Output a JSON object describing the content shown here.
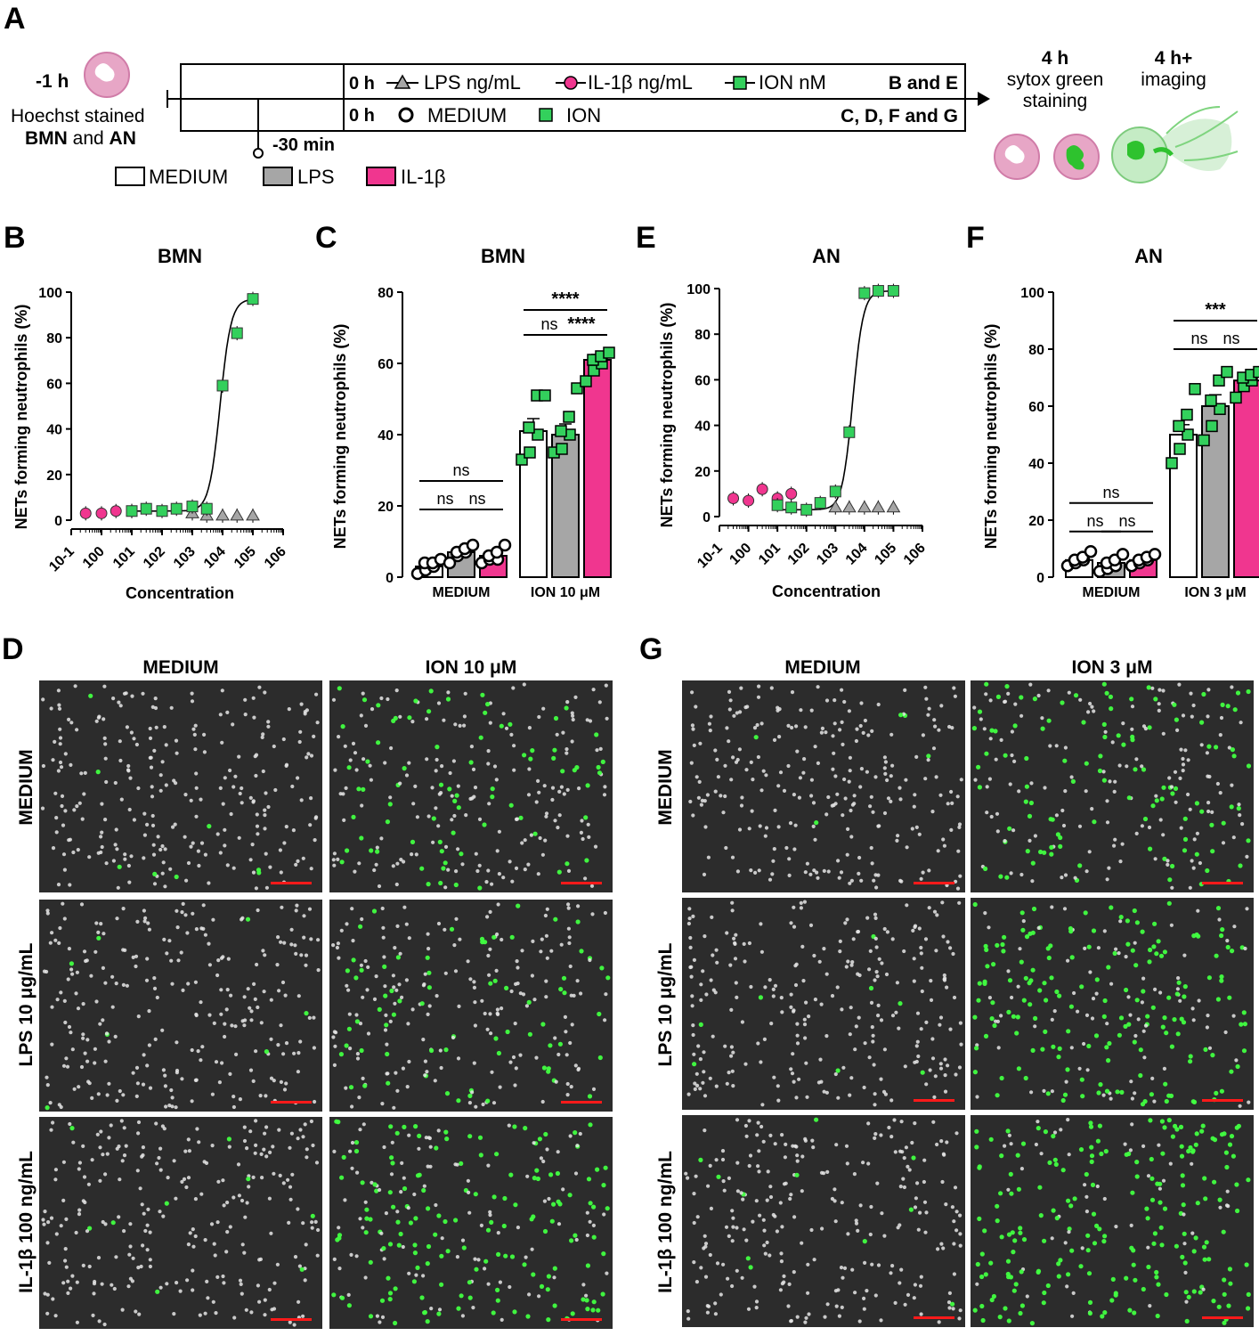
{
  "colors": {
    "medium": "#ffffff",
    "lps": "#a6a6a6",
    "il1b": "#f0368f",
    "ion": "#33d05c",
    "cell_pink": "#e7a6c6",
    "net_green": "#41ff41",
    "scale_bar": "#ff1a1a",
    "micro_bg": "#2c2c2c"
  },
  "icons": [
    "neutrophil-icon",
    "sytox-neutrophil-icon",
    "net-release-icon",
    "open-circle-icon",
    "triangle-marker-icon",
    "circle-marker-icon",
    "square-marker-icon"
  ],
  "panel_a": {
    "label": "A",
    "time_minus1": "-1 h",
    "hoechst_line1": "Hoechst stained",
    "hoechst_b1": "BMN",
    "hoechst_and": " and ",
    "hoechst_b2": "AN",
    "t0_top": "0 h",
    "lps_leg": "LPS ng/mL",
    "il1b_leg": "IL-1β ng/mL",
    "ion_leg": "ION nM",
    "be_label": "B and E",
    "t0_bottom": "0 h",
    "medium_leg": "MEDIUM",
    "ion_sq_leg": "ION",
    "cdfg_label": "C, D, F and G",
    "minus30": "-30 min",
    "key_medium": "MEDIUM",
    "key_lps": "LPS",
    "key_il1b": "IL-1β",
    "t4_a": "4 h",
    "t4_b": "sytox green",
    "t4_c": "staining",
    "t4p_a": "4 h+",
    "t4p_b": "imaging"
  },
  "chart_data": [
    {
      "panel": "B",
      "type": "scatter",
      "title": "BMN",
      "xlabel": "Concentration",
      "ylabel": "NETs forming neutrophils (%)",
      "xscale": "log",
      "xlim": [
        0.1,
        1000000
      ],
      "ylim": [
        0,
        100
      ],
      "yticks": [
        0,
        20,
        40,
        60,
        80,
        100
      ],
      "xtick_labels": [
        "10-1",
        "100",
        "101",
        "102",
        "103",
        "104",
        "105",
        "106"
      ],
      "series": [
        {
          "name": "LPS ng/mL",
          "marker": "triangle",
          "x": [
            1000,
            3000,
            10000,
            30000,
            100000
          ],
          "y": [
            3,
            2,
            2,
            2,
            2
          ]
        },
        {
          "name": "IL-1β ng/mL",
          "marker": "circle",
          "x": [
            0.3,
            1,
            3,
            10
          ],
          "y": [
            3,
            3,
            4,
            4
          ]
        },
        {
          "name": "ION nM",
          "marker": "square",
          "x": [
            10,
            30,
            100,
            300,
            1000,
            3000,
            10000,
            30000,
            100000
          ],
          "y": [
            4,
            5,
            4,
            5,
            6,
            5,
            59,
            82,
            97
          ]
        }
      ]
    },
    {
      "panel": "C",
      "type": "bar",
      "title": "BMN",
      "ylabel": "NETs forming neutrophils (%)",
      "ylim": [
        0,
        80
      ],
      "yticks": [
        0,
        20,
        40,
        60,
        80
      ],
      "groups": [
        "MEDIUM",
        "ION 10 μM"
      ],
      "series": [
        {
          "name": "MEDIUM",
          "values": [
            3,
            41
          ],
          "errors": [
            1,
            3.5
          ],
          "points": [
            [
              1,
              2,
              3,
              4,
              4,
              5
            ],
            [
              33,
              35,
              40,
              42,
              51,
              51
            ]
          ]
        },
        {
          "name": "LPS",
          "values": [
            7,
            40
          ],
          "errors": [
            1,
            3
          ],
          "points": [
            [
              4,
              6,
              7,
              7,
              8,
              9
            ],
            [
              35,
              36,
              40,
              41,
              45,
              53
            ]
          ]
        },
        {
          "name": "IL-1β",
          "values": [
            6,
            61
          ],
          "errors": [
            1,
            1.5
          ],
          "points": [
            [
              4,
              5,
              5,
              6,
              7,
              9
            ],
            [
              55,
              58,
              60,
              61,
              62,
              63
            ]
          ]
        }
      ],
      "significance": [
        {
          "label": "ns",
          "group": 0,
          "from": 0,
          "to": 2,
          "y": 27
        },
        {
          "label": "ns",
          "group": 0,
          "from": 0,
          "to": 1,
          "y": 19
        },
        {
          "label": "ns",
          "group": 0,
          "from": 1,
          "to": 2,
          "y": 19
        },
        {
          "label": "****",
          "group": 1,
          "from": 0,
          "to": 2,
          "y": 75
        },
        {
          "label": "ns",
          "group": 1,
          "from": 0,
          "to": 1,
          "y": 68
        },
        {
          "label": "****",
          "group": 1,
          "from": 1,
          "to": 2,
          "y": 68
        }
      ]
    },
    {
      "panel": "E",
      "type": "scatter",
      "title": "AN",
      "xlabel": "Concentration",
      "ylabel": "NETs forming neutrophils (%)",
      "xscale": "log",
      "xlim": [
        0.1,
        1000000
      ],
      "ylim": [
        0,
        100
      ],
      "yticks": [
        0,
        20,
        40,
        60,
        80,
        100
      ],
      "xtick_labels": [
        "10-1",
        "100",
        "101",
        "102",
        "103",
        "104",
        "105",
        "106"
      ],
      "series": [
        {
          "name": "LPS ng/mL",
          "marker": "triangle",
          "x": [
            1000,
            3000,
            10000,
            30000,
            100000
          ],
          "y": [
            4,
            4,
            4,
            4,
            4
          ]
        },
        {
          "name": "IL-1β ng/mL",
          "marker": "circle",
          "x": [
            0.3,
            1,
            3,
            10,
            30
          ],
          "y": [
            8,
            7,
            12,
            8,
            10
          ]
        },
        {
          "name": "ION nM",
          "marker": "square",
          "x": [
            10,
            30,
            100,
            300,
            1000,
            3000,
            10000,
            30000,
            100000
          ],
          "y": [
            5,
            4,
            3,
            6,
            11,
            37,
            98,
            99,
            99
          ]
        }
      ]
    },
    {
      "panel": "F",
      "type": "bar",
      "title": "AN",
      "ylabel": "NETs forming neutrophils (%)",
      "ylim": [
        0,
        100
      ],
      "yticks": [
        0,
        20,
        40,
        60,
        80,
        100
      ],
      "groups": [
        "MEDIUM",
        "ION 3 μM"
      ],
      "series": [
        {
          "name": "MEDIUM",
          "values": [
            6,
            50
          ],
          "errors": [
            1,
            3.5
          ],
          "points": [
            [
              4,
              5,
              6,
              6,
              7,
              9
            ],
            [
              40,
              45,
              50,
              53,
              57,
              66
            ]
          ]
        },
        {
          "name": "LPS",
          "values": [
            5,
            60
          ],
          "errors": [
            1,
            4
          ],
          "points": [
            [
              2,
              3,
              4,
              5,
              6,
              8
            ],
            [
              48,
              53,
              59,
              62,
              69,
              72
            ]
          ]
        },
        {
          "name": "IL-1β",
          "values": [
            6,
            69
          ],
          "errors": [
            1,
            1.5
          ],
          "points": [
            [
              4,
              5,
              6,
              6,
              7,
              8
            ],
            [
              63,
              67,
              69,
              70,
              71,
              72
            ]
          ]
        }
      ],
      "significance": [
        {
          "label": "ns",
          "group": 0,
          "from": 0,
          "to": 2,
          "y": 26
        },
        {
          "label": "ns",
          "group": 0,
          "from": 0,
          "to": 1,
          "y": 16
        },
        {
          "label": "ns",
          "group": 0,
          "from": 1,
          "to": 2,
          "y": 16
        },
        {
          "label": "***",
          "group": 1,
          "from": 0,
          "to": 2,
          "y": 90
        },
        {
          "label": "ns",
          "group": 1,
          "from": 0,
          "to": 1,
          "y": 80
        },
        {
          "label": "ns",
          "group": 1,
          "from": 1,
          "to": 2,
          "y": 80
        }
      ]
    }
  ],
  "panel_d": {
    "label": "D",
    "col1": "MEDIUM",
    "col2": "ION 10 μM",
    "row1": "MEDIUM",
    "row2": "LPS 10 μg/mL",
    "row3": "IL-1β 100 ng/mL",
    "green_density": [
      [
        0.03,
        0.3
      ],
      [
        0.03,
        0.25
      ],
      [
        0.03,
        0.62
      ]
    ]
  },
  "panel_g": {
    "label": "G",
    "col1": "MEDIUM",
    "col2": "ION 3 μM",
    "row1": "MEDIUM",
    "row2": "LPS 10 μg/mL",
    "row3": "IL-1β 100 ng/mL",
    "green_density": [
      [
        0.03,
        0.45
      ],
      [
        0.03,
        0.65
      ],
      [
        0.04,
        0.75
      ]
    ]
  }
}
